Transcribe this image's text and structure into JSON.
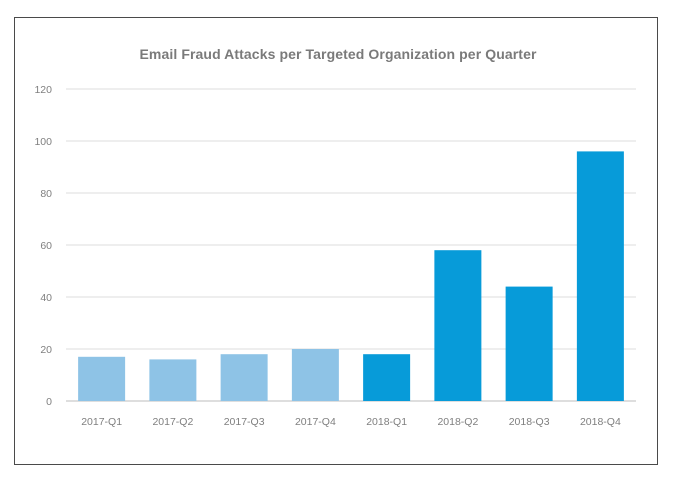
{
  "chart_data": {
    "type": "bar",
    "title": "Email Fraud Attacks per Targeted Organization per Quarter",
    "xlabel": "",
    "ylabel": "",
    "categories": [
      "2017-Q1",
      "2017-Q2",
      "2017-Q3",
      "2017-Q4",
      "2018-Q1",
      "2018-Q2",
      "2018-Q3",
      "2018-Q4"
    ],
    "values": [
      17,
      16,
      18,
      20,
      18,
      58,
      44,
      96
    ],
    "bar_colors": [
      "#8ec3e6",
      "#8ec3e6",
      "#8ec3e6",
      "#8ec3e6",
      "#079bd9",
      "#079bd9",
      "#079bd9",
      "#079bd9"
    ],
    "ylim": [
      0,
      120
    ],
    "yticks": [
      0,
      20,
      40,
      60,
      80,
      100,
      120
    ],
    "grid": true,
    "legend": "none"
  },
  "colors": {
    "frame_border": "#4a4a4a",
    "grid": "#dcdcdc",
    "axis_line": "#bdbdbd",
    "text": "#7f7f7f",
    "title": "#7a7a7a"
  }
}
